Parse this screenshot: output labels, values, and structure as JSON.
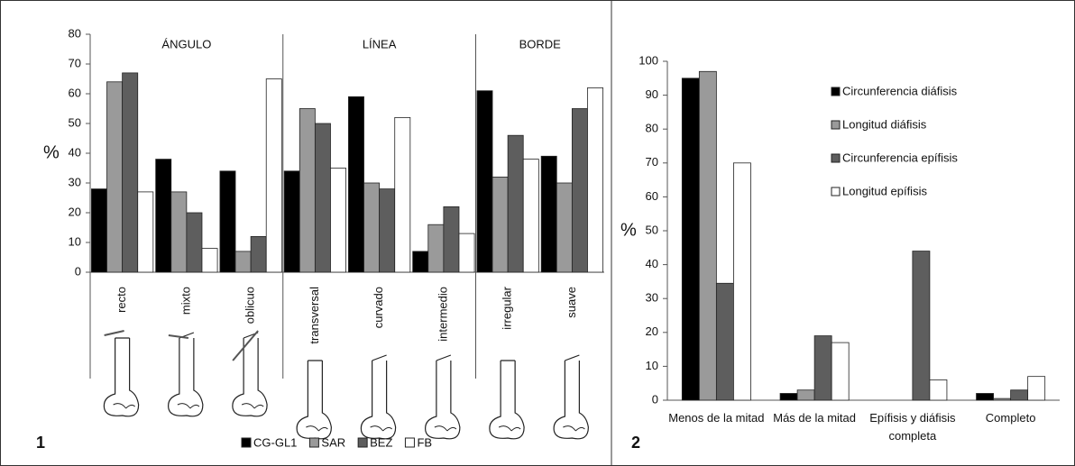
{
  "chart_data": [
    {
      "type": "bar",
      "y_label": "%",
      "panel_label": "1",
      "groups": [
        "ÁNGULO",
        "LÍNEA",
        "BORDE"
      ],
      "categories": [
        "recto",
        "mixto",
        "oblicuo",
        "transversal",
        "curvado",
        "intermedio",
        "irregular",
        "suave"
      ],
      "series": [
        {
          "name": "CG-GL1",
          "color": "#000000",
          "values": [
            28,
            38,
            34,
            34,
            59,
            7,
            61,
            39
          ]
        },
        {
          "name": "SAR",
          "color": "#9a9a9a",
          "values": [
            64,
            27,
            7,
            55,
            30,
            16,
            32,
            30
          ]
        },
        {
          "name": "BEZ",
          "color": "#5e5e5e",
          "values": [
            67,
            20,
            12,
            50,
            28,
            22,
            46,
            55
          ]
        },
        {
          "name": "FB",
          "color": "#ffffff",
          "values": [
            27,
            8,
            65,
            35,
            52,
            13,
            38,
            62
          ]
        }
      ],
      "ylim": [
        0,
        80
      ],
      "yticks": [
        0,
        10,
        20,
        30,
        40,
        50,
        60,
        70,
        80
      ],
      "legend": "bottom"
    },
    {
      "type": "bar",
      "y_label": "%",
      "panel_label": "2",
      "categories": [
        "Menos de la mitad",
        "Más de la mitad",
        "Epífisis y diáfisis completa",
        "Completo"
      ],
      "series": [
        {
          "name": "Circunferencia diáfisis",
          "color": "#000000",
          "values": [
            95,
            2,
            0,
            2
          ]
        },
        {
          "name": "Longitud diáfisis",
          "color": "#9a9a9a",
          "values": [
            97,
            3,
            0,
            0.5
          ]
        },
        {
          "name": "Circunferencia epífisis",
          "color": "#5e5e5e",
          "values": [
            34.5,
            19,
            44,
            3
          ]
        },
        {
          "name": "Longitud epífisis",
          "color": "#ffffff",
          "values": [
            70,
            17,
            6,
            7
          ]
        }
      ],
      "ylim": [
        0,
        100
      ],
      "yticks": [
        0,
        10,
        20,
        30,
        40,
        50,
        60,
        70,
        80,
        90,
        100
      ],
      "legend": "upper right"
    }
  ]
}
